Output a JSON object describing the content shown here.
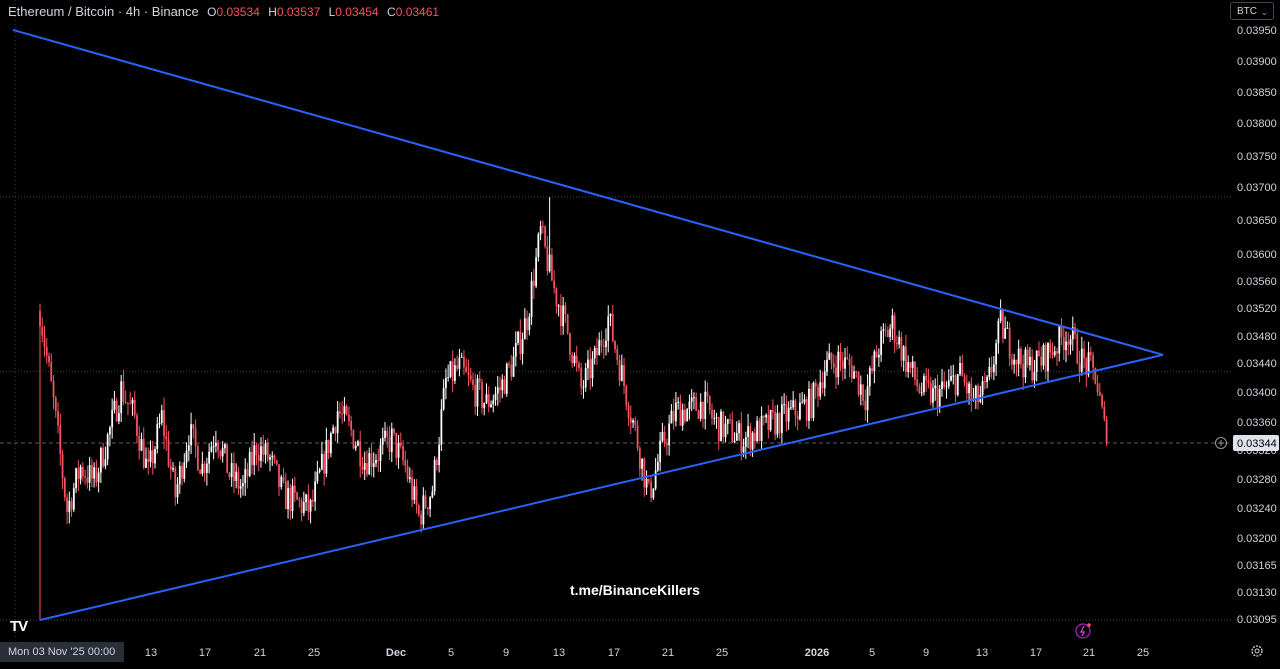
{
  "legend": {
    "symbol": "Ethereum / Bitcoin · 4h · Binance",
    "open_label": "O",
    "open": "0.03534",
    "high_label": "H",
    "high": "0.03537",
    "low_label": "L",
    "low": "0.03454",
    "close_label": "C",
    "close": "0.03461"
  },
  "currency_button": {
    "label": "BTC"
  },
  "watermark": "t.me/BinanceKillers",
  "date_badge": "Mon 03 Nov '25   00:00",
  "logo_text": "TV",
  "colors": {
    "up": "#ffffff",
    "down": "#f7525f",
    "trendline": "#2962ff",
    "background": "#000000"
  },
  "icons": [
    "plus-circle-icon",
    "lightning-icon",
    "settings-icon",
    "chevron-down-icon"
  ],
  "chart_data": {
    "type": "candlestick",
    "title": "Ethereum / Bitcoin · 4h · Binance",
    "price_axis": {
      "labels": [
        "0.03950",
        "0.03900",
        "0.03850",
        "0.03800",
        "0.03750",
        "0.03700",
        "0.03650",
        "0.03600",
        "0.03560",
        "0.03520",
        "0.03480",
        "0.03440",
        "0.03400",
        "0.03360",
        "0.03320",
        "0.03280",
        "0.03240",
        "0.03200",
        "0.03165",
        "0.03130",
        "0.03095"
      ],
      "current_price": "0.03344"
    },
    "time_axis": {
      "labels": [
        "13",
        "17",
        "21",
        "25",
        "Dec",
        "5",
        "9",
        "13",
        "17",
        "21",
        "25",
        "2026",
        "5",
        "9",
        "13",
        "17",
        "21",
        "25"
      ],
      "bold": [
        "Dec",
        "2026"
      ]
    },
    "grid": false,
    "range": {
      "start": "2025-11-03",
      "end": "2026-01-20"
    },
    "notable_points": {
      "start_low": 0.03095,
      "peak_high": 0.0369,
      "last_close": 0.03344
    },
    "trendlines": [
      {
        "name": "upper",
        "from": [
          "2025-11-01",
          0.03925
        ],
        "to": [
          "2026-01-25",
          0.03468
        ]
      },
      {
        "name": "lower",
        "from": [
          "2025-11-03",
          0.03095
        ],
        "to": [
          "2026-01-25",
          0.03468
        ]
      }
    ],
    "path": [
      [
        "2025-11-03",
        0.0353
      ],
      [
        "2025-11-04",
        0.034
      ],
      [
        "2025-11-05",
        0.0325
      ],
      [
        "2025-11-06",
        0.0331
      ],
      [
        "2025-11-07",
        0.0329
      ],
      [
        "2025-11-08",
        0.0335
      ],
      [
        "2025-11-09",
        0.0342
      ],
      [
        "2025-11-10",
        0.0338
      ],
      [
        "2025-11-11",
        0.033
      ],
      [
        "2025-11-12",
        0.0338
      ],
      [
        "2025-11-13",
        0.0327
      ],
      [
        "2025-11-14",
        0.0336
      ],
      [
        "2025-11-15",
        0.0331
      ],
      [
        "2025-11-16",
        0.0336
      ],
      [
        "2025-11-17",
        0.033
      ],
      [
        "2025-11-18",
        0.0328
      ],
      [
        "2025-11-19",
        0.0334
      ],
      [
        "2025-11-20",
        0.0332
      ],
      [
        "2025-11-21",
        0.0327
      ],
      [
        "2025-11-22",
        0.0326
      ],
      [
        "2025-11-23",
        0.0325
      ],
      [
        "2025-11-24",
        0.0332
      ],
      [
        "2025-11-25",
        0.0339
      ],
      [
        "2025-11-26",
        0.0336
      ],
      [
        "2025-11-27",
        0.0332
      ],
      [
        "2025-11-28",
        0.0333
      ],
      [
        "2025-11-29",
        0.0335
      ],
      [
        "2025-11-30",
        0.0331
      ],
      [
        "2025-12-01",
        0.0324
      ],
      [
        "2025-12-02",
        0.0328
      ],
      [
        "2025-12-03",
        0.0343
      ],
      [
        "2025-12-04",
        0.0345
      ],
      [
        "2025-12-05",
        0.0342
      ],
      [
        "2025-12-06",
        0.034
      ],
      [
        "2025-12-07",
        0.0342
      ],
      [
        "2025-12-08",
        0.0346
      ],
      [
        "2025-12-09",
        0.0352
      ],
      [
        "2025-12-10",
        0.0364
      ],
      [
        "2025-12-11",
        0.0356
      ],
      [
        "2025-12-12",
        0.035
      ],
      [
        "2025-12-13",
        0.0342
      ],
      [
        "2025-12-14",
        0.0346
      ],
      [
        "2025-12-15",
        0.0352
      ],
      [
        "2025-12-16",
        0.0344
      ],
      [
        "2025-12-17",
        0.0336
      ],
      [
        "2025-12-18",
        0.0327
      ],
      [
        "2025-12-19",
        0.0334
      ],
      [
        "2025-12-20",
        0.0339
      ],
      [
        "2025-12-21",
        0.0339
      ],
      [
        "2025-12-22",
        0.034
      ],
      [
        "2025-12-23",
        0.0337
      ],
      [
        "2025-12-24",
        0.0336
      ],
      [
        "2025-12-25",
        0.0335
      ],
      [
        "2025-12-26",
        0.0336
      ],
      [
        "2025-12-27",
        0.0337
      ],
      [
        "2025-12-28",
        0.0338
      ],
      [
        "2025-12-29",
        0.0339
      ],
      [
        "2025-12-30",
        0.034
      ],
      [
        "2025-12-31",
        0.0345
      ],
      [
        "2026-01-01",
        0.0346
      ],
      [
        "2026-01-02",
        0.0345
      ],
      [
        "2026-01-03",
        0.0341
      ],
      [
        "2026-01-04",
        0.0348
      ],
      [
        "2026-01-05",
        0.0351
      ],
      [
        "2026-01-06",
        0.0346
      ],
      [
        "2026-01-07",
        0.0342
      ],
      [
        "2026-01-08",
        0.0341
      ],
      [
        "2026-01-09",
        0.0342
      ],
      [
        "2026-01-10",
        0.0344
      ],
      [
        "2026-01-11",
        0.034
      ],
      [
        "2026-01-12",
        0.0342
      ],
      [
        "2026-01-13",
        0.0351
      ],
      [
        "2026-01-14",
        0.0347
      ],
      [
        "2026-01-15",
        0.0345
      ],
      [
        "2026-01-16",
        0.0346
      ],
      [
        "2026-01-17",
        0.0348
      ],
      [
        "2026-01-18",
        0.035
      ],
      [
        "2026-01-19",
        0.0346
      ],
      [
        "2026-01-20",
        0.0344
      ],
      [
        "2026-01-20T20:00",
        0.03344
      ]
    ]
  }
}
